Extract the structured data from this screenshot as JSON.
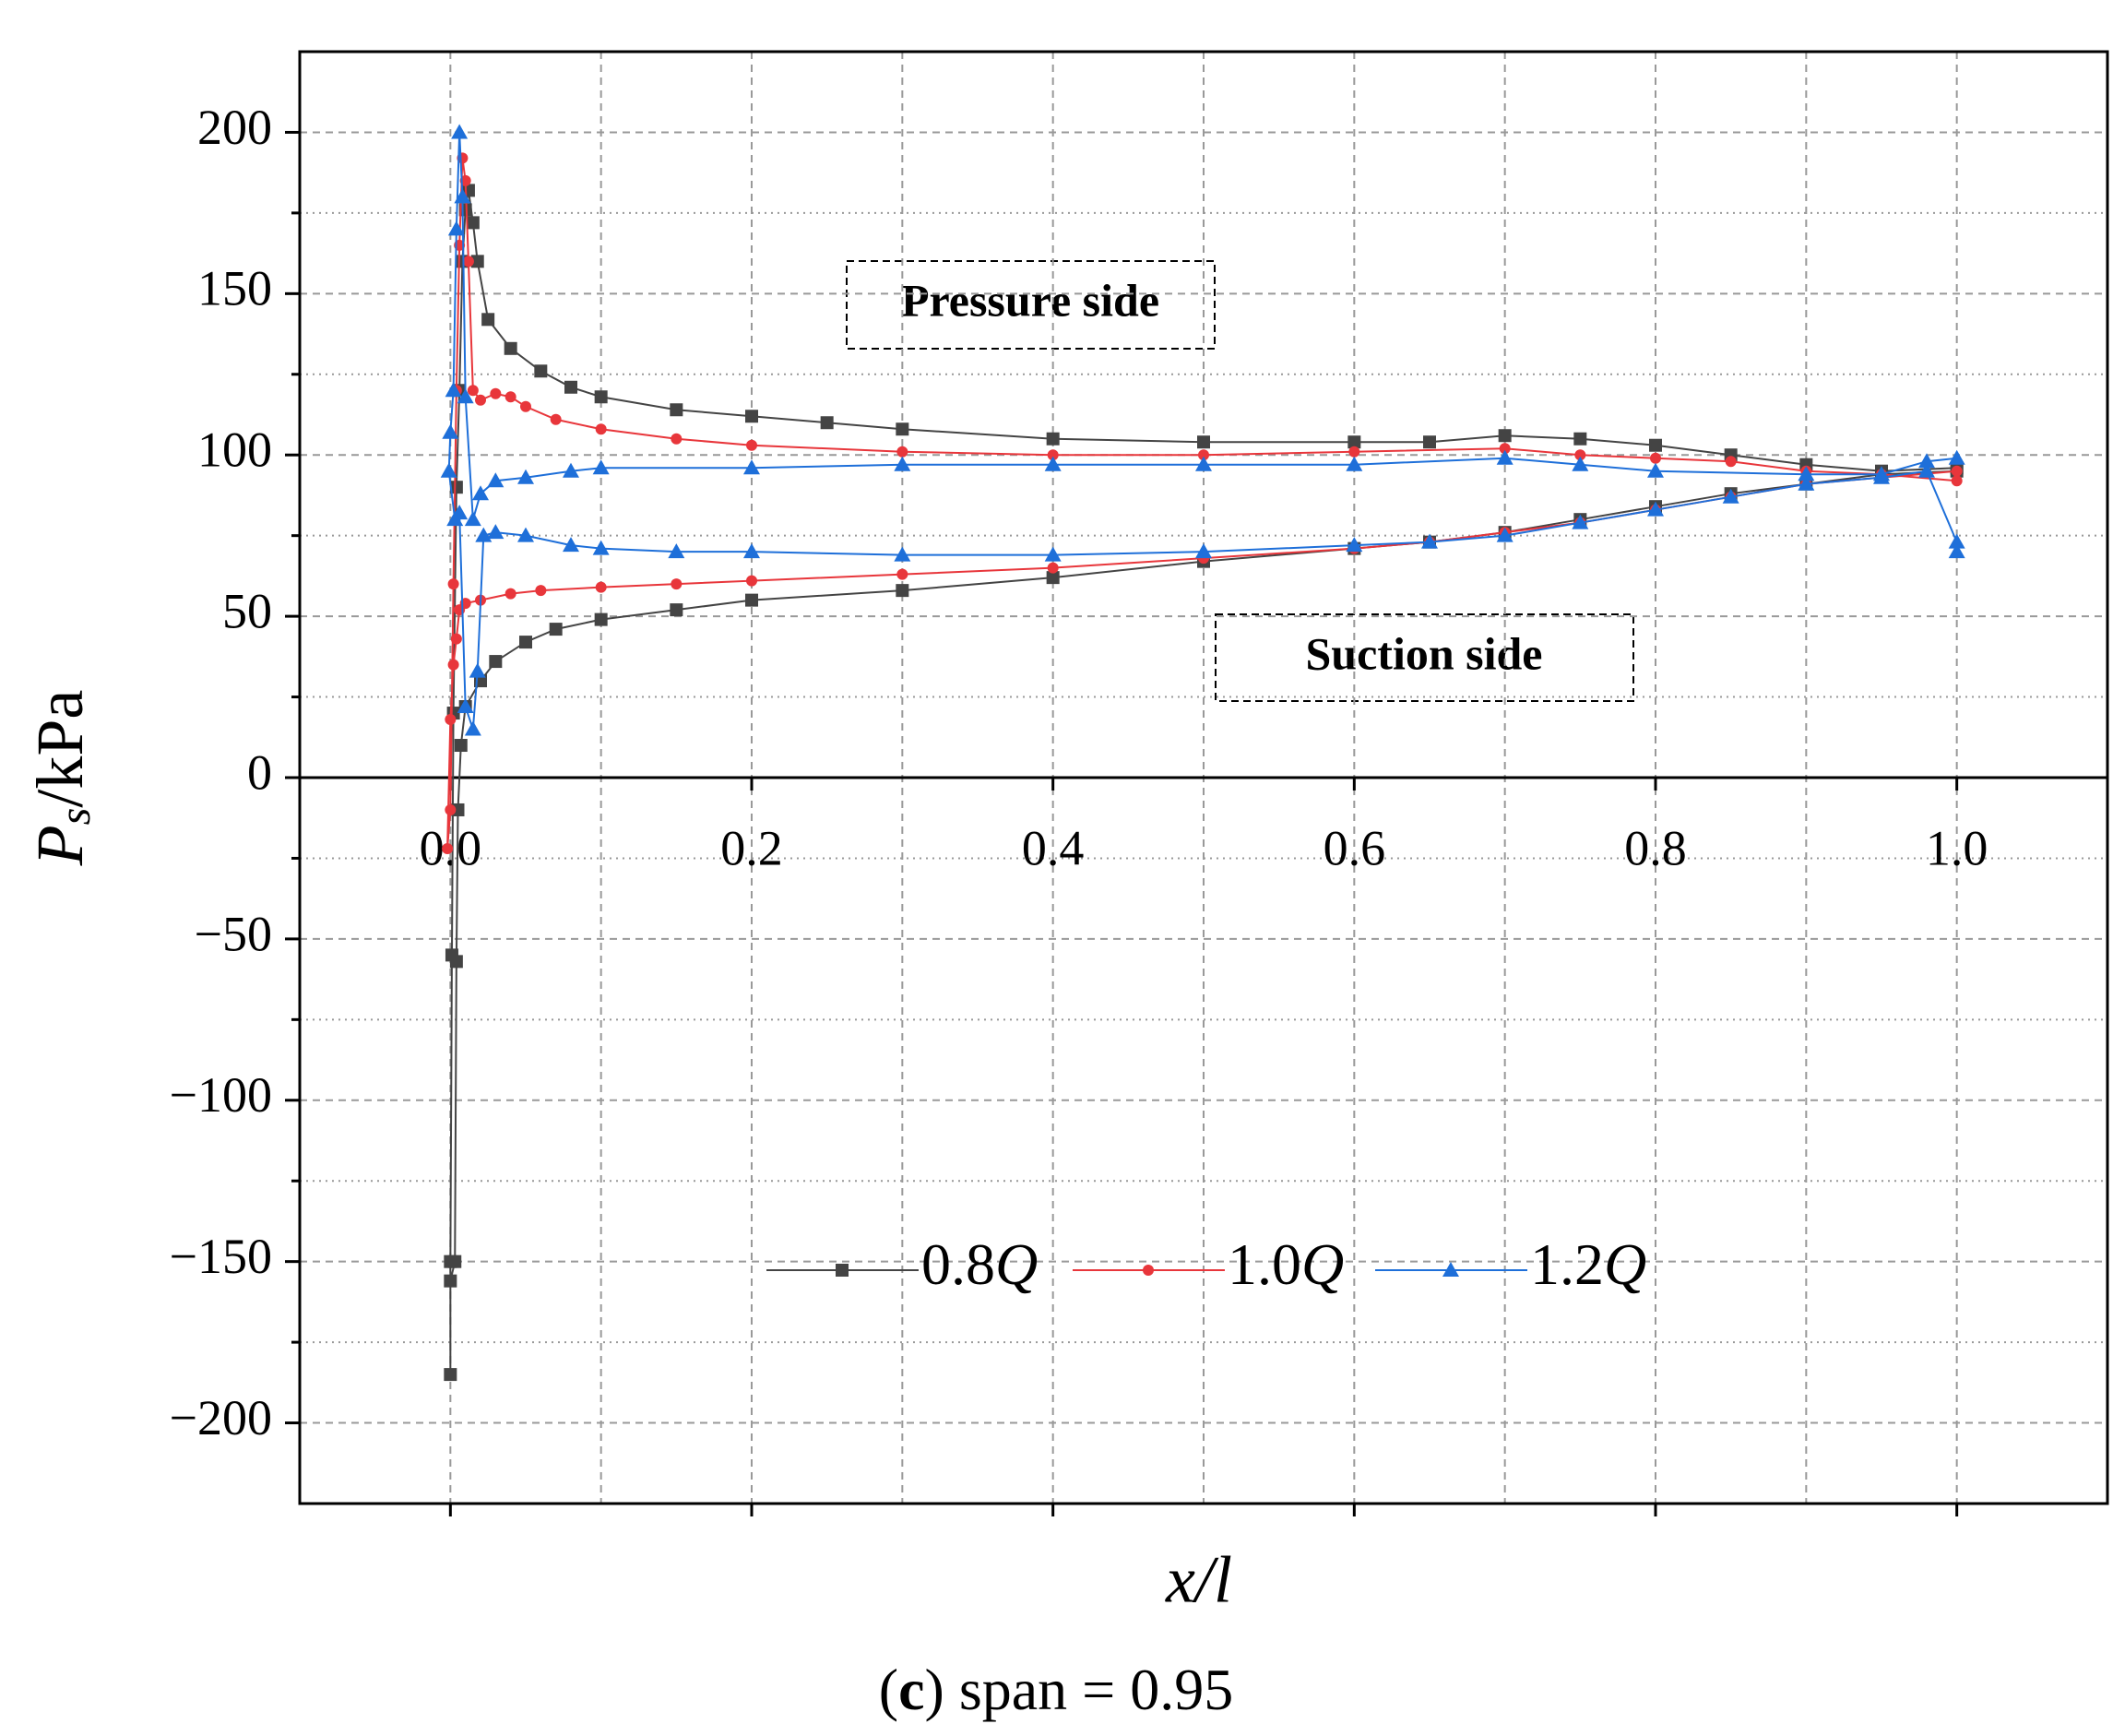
{
  "chart_data": {
    "type": "line",
    "x_label": "x/l",
    "y_label": {
      "symbol": "P",
      "subscript": "s",
      "unit": "/kPa"
    },
    "caption": [
      "(",
      "c",
      ") span = 0.95"
    ],
    "annotations": [
      "Pressure side",
      "Suction side"
    ],
    "xlim": [
      -0.1,
      1.1
    ],
    "ylim": [
      -225,
      225
    ],
    "xticks": [
      {
        "value": 0,
        "label": "0.0"
      },
      0.2,
      0.4,
      0.6,
      0.8,
      {
        "value": 1,
        "label": "1.0"
      }
    ],
    "yticks": [
      {
        "value": -200,
        "label": "−200"
      },
      {
        "value": -150,
        "label": "−150"
      },
      {
        "value": -100,
        "label": "−100"
      },
      {
        "value": -50,
        "label": "−50"
      },
      0,
      50,
      100,
      150,
      200
    ],
    "xminorticks": [
      0.1,
      0.3,
      0.5,
      0.7,
      0.9
    ],
    "yminorticks": [
      -175,
      -125,
      -75,
      -25,
      25,
      75,
      125,
      175
    ],
    "grid": true,
    "series": [
      {
        "name": "0.8Q",
        "color": "#444444",
        "marker": "square",
        "x": [
          1.0,
          0.95,
          0.9,
          0.85,
          0.8,
          0.75,
          0.7,
          0.65,
          0.6,
          0.5,
          0.4,
          0.3,
          0.25,
          0.2,
          0.15,
          0.1,
          0.08,
          0.06,
          0.04,
          0.025,
          0.018,
          0.015,
          0.012,
          0.01,
          0.008,
          0.006,
          0.004,
          0.002,
          0.001,
          0.0,
          0.0,
          0.0,
          0.003,
          0.004,
          0.005,
          0.007,
          0.01,
          0.02,
          0.03,
          0.05,
          0.07,
          0.1,
          0.15,
          0.2,
          0.3,
          0.4,
          0.5,
          0.6,
          0.65,
          0.7,
          0.75,
          0.8,
          0.85,
          0.9,
          0.95,
          1.0
        ],
        "values": [
          96,
          95,
          97,
          100,
          103,
          105,
          106,
          104,
          104,
          104,
          105,
          108,
          110,
          112,
          114,
          118,
          121,
          126,
          133,
          142,
          160,
          172,
          182,
          176,
          160,
          120,
          90,
          20,
          -55,
          -150,
          -185,
          -156,
          -150,
          -57,
          -10,
          10,
          22,
          30,
          36,
          42,
          46,
          49,
          52,
          55,
          58,
          62,
          67,
          71,
          73,
          76,
          80,
          84,
          88,
          91,
          94,
          95
        ]
      },
      {
        "name": "1.0Q",
        "color": "#e8363b",
        "marker": "circle",
        "x": [
          1.0,
          0.95,
          0.9,
          0.85,
          0.8,
          0.75,
          0.7,
          0.6,
          0.5,
          0.4,
          0.3,
          0.2,
          0.15,
          0.1,
          0.07,
          0.05,
          0.04,
          0.03,
          0.02,
          0.015,
          0.012,
          0.01,
          0.008,
          0.006,
          0.004,
          0.002,
          0.0,
          -0.002,
          0.0,
          0.002,
          0.004,
          0.006,
          0.01,
          0.02,
          0.04,
          0.06,
          0.1,
          0.15,
          0.2,
          0.3,
          0.4,
          0.5,
          0.6,
          0.65,
          0.7,
          0.75,
          0.8,
          0.85,
          0.9,
          0.95,
          1.0
        ],
        "values": [
          92,
          94,
          95,
          98,
          99,
          100,
          102,
          101,
          100,
          100,
          101,
          103,
          105,
          108,
          111,
          115,
          118,
          119,
          117,
          120,
          160,
          185,
          192,
          165,
          120,
          60,
          -10,
          -22,
          18,
          35,
          43,
          52,
          54,
          55,
          57,
          58,
          59,
          60,
          61,
          63,
          65,
          68,
          71,
          73,
          76,
          79,
          83,
          87,
          91,
          93,
          95
        ]
      },
      {
        "name": "1.2Q",
        "color": "#1e6fd9",
        "marker": "triangle",
        "x": [
          1.0,
          0.98,
          0.95,
          0.9,
          0.8,
          0.75,
          0.7,
          0.6,
          0.5,
          0.4,
          0.3,
          0.2,
          0.1,
          0.08,
          0.05,
          0.03,
          0.02,
          0.015,
          0.01,
          0.008,
          0.006,
          0.004,
          0.002,
          0.0,
          -0.001,
          0.003,
          0.006,
          0.01,
          0.015,
          0.018,
          0.022,
          0.03,
          0.05,
          0.08,
          0.1,
          0.15,
          0.2,
          0.3,
          0.4,
          0.5,
          0.6,
          0.65,
          0.7,
          0.75,
          0.8,
          0.85,
          0.9,
          0.95,
          0.98,
          1.0,
          1.0
        ],
        "values": [
          99,
          98,
          94,
          94,
          95,
          97,
          99,
          97,
          97,
          97,
          97,
          96,
          96,
          95,
          93,
          92,
          88,
          80,
          118,
          180,
          200,
          170,
          120,
          107,
          95,
          80,
          82,
          22,
          15,
          33,
          75,
          76,
          75,
          72,
          71,
          70,
          70,
          69,
          69,
          70,
          72,
          73,
          75,
          79,
          83,
          87,
          91,
          93,
          95,
          73,
          70
        ]
      }
    ]
  }
}
